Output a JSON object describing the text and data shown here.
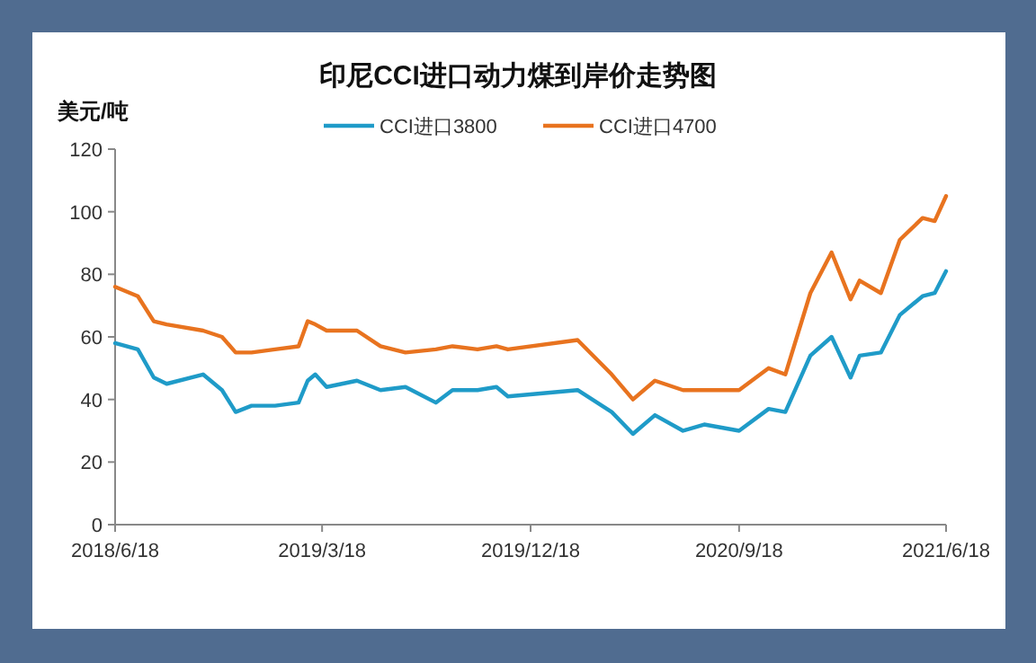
{
  "chart_data": {
    "type": "line",
    "title": "印尼CCI进口动力煤到岸价走势图",
    "ylabel": "美元/吨",
    "x": [
      "2018-06-18",
      "2018-07-18",
      "2018-08-08",
      "2018-08-25",
      "2018-10-12",
      "2018-11-06",
      "2018-11-24",
      "2018-12-15",
      "2019-01-15",
      "2019-02-15",
      "2019-02-27",
      "2019-03-09",
      "2019-03-24",
      "2019-05-03",
      "2019-06-03",
      "2019-07-06",
      "2019-08-15",
      "2019-09-06",
      "2019-10-09",
      "2019-11-03",
      "2019-11-18",
      "2020-02-18",
      "2020-04-03",
      "2020-05-01",
      "2020-05-30",
      "2020-07-06",
      "2020-08-03",
      "2020-09-18",
      "2020-10-27",
      "2020-11-18",
      "2020-12-21",
      "2021-01-18",
      "2021-02-12",
      "2021-02-24",
      "2021-03-24",
      "2021-04-18",
      "2021-05-18",
      "2021-06-03",
      "2021-06-18"
    ],
    "series": [
      {
        "name": "CCI进口3800",
        "color": "#1f9bc8",
        "values": [
          58,
          56,
          47,
          45,
          48,
          43,
          36,
          38,
          38,
          39,
          46,
          48,
          44,
          46,
          43,
          44,
          39,
          43,
          43,
          44,
          41,
          43,
          36,
          29,
          35,
          30,
          32,
          30,
          37,
          36,
          54,
          60,
          47,
          54,
          55,
          67,
          73,
          74,
          81
        ]
      },
      {
        "name": "CCI进口4700",
        "color": "#e8731f",
        "values": [
          76,
          73,
          65,
          64,
          62,
          60,
          55,
          55,
          56,
          57,
          65,
          64,
          62,
          62,
          57,
          55,
          56,
          57,
          56,
          57,
          56,
          59,
          48,
          40,
          46,
          43,
          43,
          43,
          50,
          48,
          74,
          87,
          72,
          78,
          74,
          91,
          98,
          97,
          105
        ]
      }
    ],
    "xlim": [
      "2018-06-18",
      "2021-06-18"
    ],
    "xticks": [
      {
        "value": "2018-06-18",
        "label": "2018/6/18"
      },
      {
        "value": "2019-03-18",
        "label": "2019/3/18"
      },
      {
        "value": "2019-12-18",
        "label": "2019/12/18"
      },
      {
        "value": "2020-09-18",
        "label": "2020/9/18"
      },
      {
        "value": "2021-06-18",
        "label": "2021/6/18"
      }
    ],
    "ylim": [
      0,
      120
    ],
    "yticks": [
      0,
      20,
      40,
      60,
      80,
      100,
      120
    ],
    "grid": false,
    "legend": "top",
    "marker": "none",
    "line_style": "solid"
  }
}
